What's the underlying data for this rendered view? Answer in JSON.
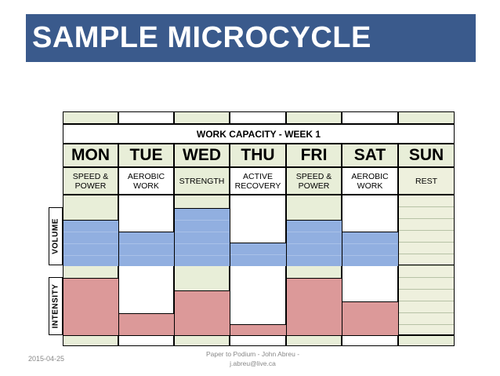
{
  "banner": {
    "title": "SAMPLE MICROCYCLE"
  },
  "table": {
    "title": "WORK CAPACITY - WEEK 1",
    "row_labels": {
      "volume": "VOLUME",
      "intensity": "INTENSITY"
    },
    "days": [
      {
        "day": "MON",
        "type": "SPEED &\nPOWER",
        "load": "high",
        "volume": 0.64,
        "intensity": 0.82
      },
      {
        "day": "TUE",
        "type": "AEROBIC\nWORK",
        "load": "low",
        "volume": 0.48,
        "intensity": 0.32
      },
      {
        "day": "WED",
        "type": "STRENGTH",
        "load": "high",
        "volume": 0.81,
        "intensity": 0.64
      },
      {
        "day": "THU",
        "type": "ACTIVE\nRECOVERY",
        "load": "low",
        "volume": 0.32,
        "intensity": 0.16
      },
      {
        "day": "FRI",
        "type": "SPEED &\nPOWER",
        "load": "high",
        "volume": 0.64,
        "intensity": 0.82
      },
      {
        "day": "SAT",
        "type": "AEROBIC\nWORK",
        "load": "low",
        "volume": 0.48,
        "intensity": 0.48
      },
      {
        "day": "SUN",
        "type": "REST",
        "load": "rest",
        "volume": 0,
        "intensity": 0
      }
    ]
  },
  "colors": {
    "banner": "#3a5a8c",
    "volume": "#91afe0",
    "intensity": "#dc9999",
    "high_load": "#e8eed8",
    "low_load": "#ffffff"
  },
  "footer": {
    "date": "2015-04-25",
    "credit_line1": "Paper to Podium - John Abreu -",
    "credit_line2": "j.abreu@live.ca"
  }
}
